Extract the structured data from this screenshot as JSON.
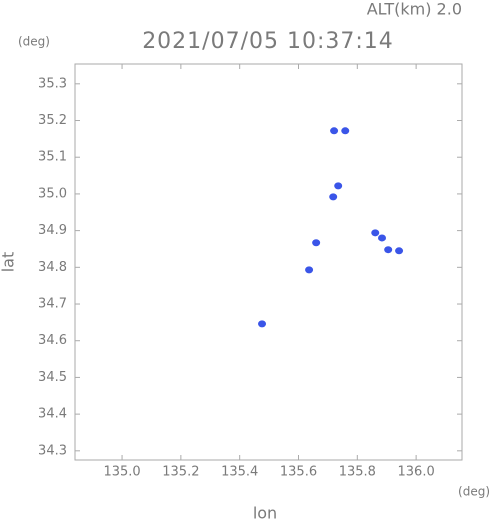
{
  "chart_data": {
    "type": "scatter",
    "title": "2021/07/05 10:37:14",
    "subtitle": "ALT(km) 2.0",
    "x_label": "lon",
    "y_label": "lat",
    "x_unit": "(deg)",
    "y_unit": "(deg)",
    "series": [
      {
        "color": "#3a55e8",
        "x": [
          135.721,
          135.759,
          135.718,
          135.735,
          135.66,
          135.861,
          135.884,
          135.905,
          135.942,
          135.476,
          135.636
        ],
        "values": [
          35.172,
          35.172,
          34.992,
          35.022,
          34.867,
          34.894,
          34.88,
          34.848,
          34.845,
          34.646,
          34.793
        ]
      }
    ],
    "xlim": [
      134.84,
      136.156
    ],
    "ylim": [
      34.275,
      35.354
    ],
    "xticks": [
      {
        "value": 135,
        "label": "135.0"
      },
      135.2,
      135.4,
      135.6,
      135.8,
      {
        "value": 136,
        "label": "136.0"
      }
    ],
    "yticks": [
      34.3,
      34.4,
      34.5,
      34.6,
      34.7,
      34.8,
      34.9,
      {
        "value": 35,
        "label": "35.0"
      },
      35.1,
      35.2,
      35.3
    ]
  }
}
